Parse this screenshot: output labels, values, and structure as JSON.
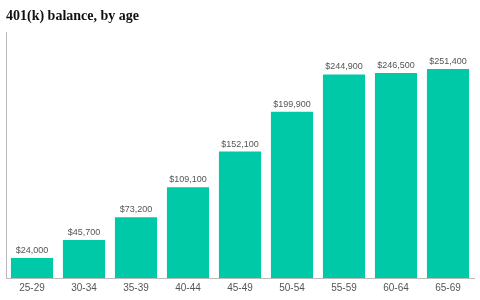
{
  "chart_data": {
    "type": "bar",
    "title": "401(k) balance, by age",
    "categories": [
      "25-29",
      "30-34",
      "35-39",
      "40-44",
      "45-49",
      "50-54",
      "55-59",
      "60-64",
      "65-69"
    ],
    "values": [
      24000,
      45700,
      73200,
      109100,
      152100,
      199900,
      244900,
      246500,
      251400
    ],
    "value_labels": [
      "$24,000",
      "$45,700",
      "$73,200",
      "$109,100",
      "$152,100",
      "$199,900",
      "$244,900",
      "$246,500",
      "$251,400"
    ],
    "color": "#00C9A7",
    "ylim": [
      0,
      295000
    ],
    "grid": false,
    "data_labels": true,
    "tick_labels": "x"
  }
}
